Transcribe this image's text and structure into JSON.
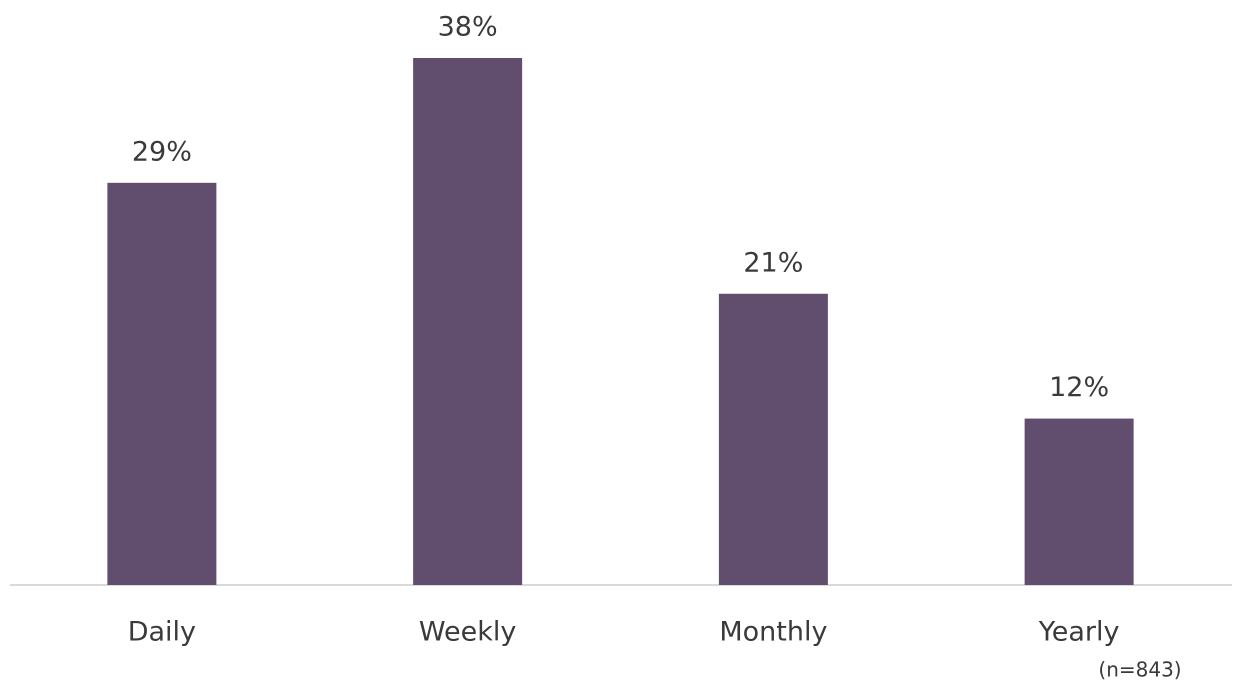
{
  "chart_data": {
    "type": "bar",
    "categories": [
      "Daily",
      "Weekly",
      "Monthly",
      "Yearly"
    ],
    "values": [
      29,
      38,
      21,
      12
    ],
    "value_labels": [
      "29%",
      "38%",
      "21%",
      "12%"
    ],
    "color": "#614d6e",
    "annotation": "(n=843)"
  }
}
